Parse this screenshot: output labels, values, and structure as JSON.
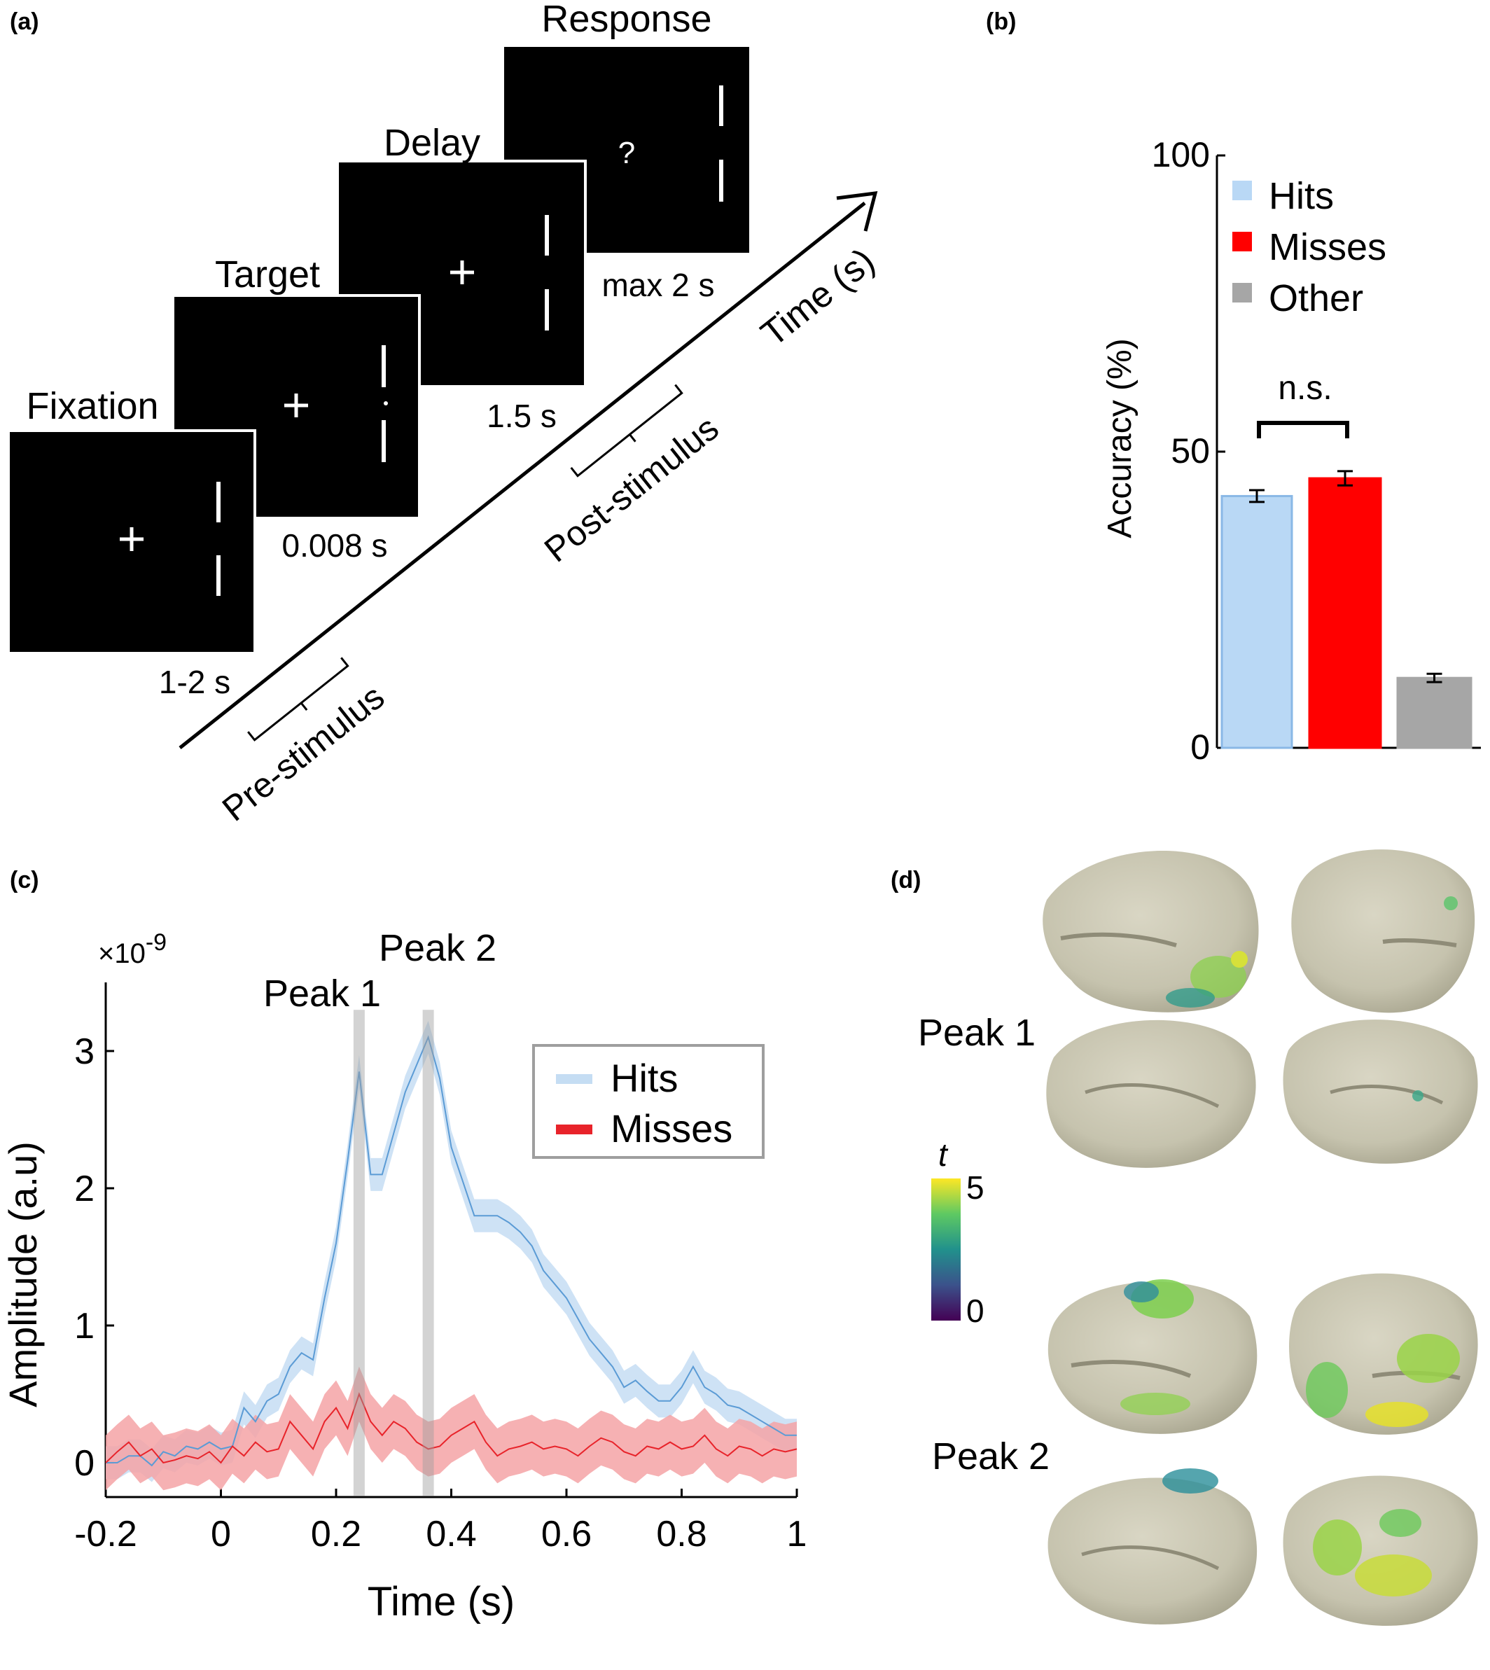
{
  "panels": {
    "a": {
      "label": "(a)",
      "screens": [
        {
          "title": "Fixation",
          "duration": "1-2 s"
        },
        {
          "title": "Target",
          "duration": "0.008 s"
        },
        {
          "title": "Delay",
          "duration": "1.5 s"
        },
        {
          "title": "Response",
          "duration": "max 2 s",
          "symbol": "?"
        }
      ],
      "time_axis": "Time (s)",
      "brackets": [
        "Pre-stimulus",
        "Post-stimulus"
      ]
    },
    "b": {
      "label": "(b)",
      "significance": "n.s."
    },
    "c": {
      "label": "(c)",
      "exponent_base": "×10",
      "exponent_power": "-9",
      "peak_labels": [
        "Peak 1",
        "Peak 2"
      ]
    },
    "d": {
      "label": "(d)",
      "peak_labels": [
        "Peak 1",
        "Peak 2"
      ],
      "colorbar": {
        "label": "t",
        "min": "0",
        "max": "5"
      }
    }
  },
  "chart_data": [
    {
      "type": "bar",
      "panel": "b",
      "categories": [
        "Hits",
        "Misses",
        "Other"
      ],
      "values": [
        42.5,
        45.5,
        11.8
      ],
      "errors": [
        1.0,
        1.2,
        0.7
      ],
      "colors": [
        "#b9d8f5",
        "#ff0000",
        "#a6a6a6"
      ],
      "legend": [
        "Hits",
        "Misses",
        "Other"
      ],
      "legend_position": "top-left",
      "ylabel": "Accuracy (%)",
      "ylim": [
        0,
        100
      ],
      "yticks": [
        "0",
        "50",
        "100"
      ],
      "significance": "n.s."
    },
    {
      "type": "line",
      "panel": "c",
      "xlabel": "Time (s)",
      "ylabel": "Amplitude (a.u)",
      "xlim": [
        -0.2,
        1
      ],
      "ylim": [
        -0.25,
        3.5
      ],
      "xticks": [
        "-0.2",
        "0",
        "0.2",
        "0.4",
        "0.6",
        "0.8",
        "1"
      ],
      "yticks": [
        "0",
        "1",
        "2",
        "3"
      ],
      "y_scale_note": "×10^-9",
      "legend_position": "top-right",
      "peaks": [
        0.24,
        0.36
      ],
      "x": [
        -0.2,
        -0.18,
        -0.16,
        -0.14,
        -0.12,
        -0.1,
        -0.08,
        -0.06,
        -0.04,
        -0.02,
        0,
        0.02,
        0.04,
        0.06,
        0.08,
        0.1,
        0.12,
        0.14,
        0.16,
        0.18,
        0.2,
        0.22,
        0.24,
        0.26,
        0.28,
        0.3,
        0.32,
        0.34,
        0.36,
        0.38,
        0.4,
        0.42,
        0.44,
        0.46,
        0.48,
        0.5,
        0.52,
        0.54,
        0.56,
        0.58,
        0.6,
        0.62,
        0.64,
        0.66,
        0.68,
        0.7,
        0.72,
        0.74,
        0.76,
        0.78,
        0.8,
        0.82,
        0.84,
        0.86,
        0.88,
        0.9,
        0.92,
        0.94,
        0.96,
        0.98,
        1.0
      ],
      "series": [
        {
          "name": "Hits",
          "color": "#5b9bd5",
          "band": "#c5ddf3",
          "values": [
            0.0,
            0.0,
            0.05,
            0.05,
            -0.02,
            0.08,
            0.05,
            0.12,
            0.1,
            0.15,
            0.1,
            0.12,
            0.4,
            0.3,
            0.45,
            0.5,
            0.7,
            0.8,
            0.75,
            1.2,
            1.6,
            2.2,
            2.85,
            2.1,
            2.1,
            2.4,
            2.7,
            2.9,
            3.1,
            2.8,
            2.3,
            2.05,
            1.8,
            1.8,
            1.8,
            1.75,
            1.68,
            1.58,
            1.4,
            1.3,
            1.2,
            1.05,
            0.9,
            0.8,
            0.7,
            0.55,
            0.6,
            0.52,
            0.45,
            0.45,
            0.55,
            0.7,
            0.55,
            0.5,
            0.42,
            0.4,
            0.35,
            0.3,
            0.25,
            0.2,
            0.2
          ],
          "band_width": 0.12
        },
        {
          "name": "Misses",
          "color": "#e8232a",
          "band": "#f5a3a6",
          "values": [
            0.0,
            0.08,
            0.15,
            0.05,
            0.1,
            0.0,
            0.02,
            0.05,
            0.03,
            0.08,
            0.0,
            0.12,
            0.05,
            0.15,
            0.08,
            0.1,
            0.3,
            0.2,
            0.1,
            0.3,
            0.4,
            0.25,
            0.5,
            0.3,
            0.2,
            0.3,
            0.25,
            0.15,
            0.1,
            0.12,
            0.2,
            0.25,
            0.3,
            0.15,
            0.05,
            0.1,
            0.12,
            0.15,
            0.1,
            0.12,
            0.1,
            0.05,
            0.12,
            0.18,
            0.15,
            0.08,
            0.05,
            0.12,
            0.1,
            0.15,
            0.1,
            0.12,
            0.2,
            0.1,
            0.05,
            0.12,
            0.1,
            0.05,
            0.1,
            0.08,
            0.1
          ],
          "band_width": 0.2
        }
      ]
    }
  ]
}
